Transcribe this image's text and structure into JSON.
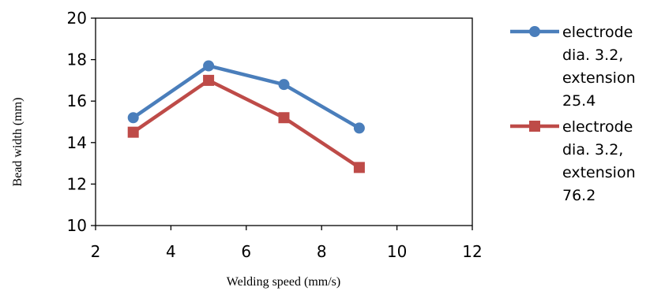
{
  "chart_data": {
    "type": "line",
    "title": "",
    "xlabel": "Welding speed (mm/s)",
    "ylabel": "Bead width (mm)",
    "xlim": [
      2,
      12
    ],
    "ylim": [
      10,
      20
    ],
    "x_ticks": [
      "2",
      "4",
      "6",
      "8",
      "10",
      "12"
    ],
    "y_ticks": [
      "10",
      "12",
      "14",
      "16",
      "18",
      "20"
    ],
    "grid": false,
    "legend_position": "right",
    "series": [
      {
        "name_lines": [
          "electrode",
          "dia. 3.2,",
          "extension",
          "25.4"
        ],
        "color": "#4a7ebb",
        "marker": "circle",
        "x": [
          3,
          5,
          7,
          9
        ],
        "y": [
          15.2,
          17.7,
          16.8,
          14.7
        ]
      },
      {
        "name_lines": [
          "electrode",
          "dia. 3.2,",
          "extension",
          "76.2"
        ],
        "color": "#be4b48",
        "marker": "square",
        "x": [
          3,
          5,
          7,
          9
        ],
        "y": [
          14.5,
          17.0,
          15.2,
          12.8
        ]
      }
    ]
  }
}
